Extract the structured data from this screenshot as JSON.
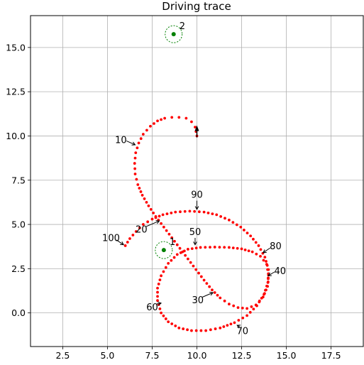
{
  "chart_data": {
    "type": "scatter",
    "title": "Driving trace",
    "xlabel": "",
    "ylabel": "",
    "xlim": [
      0.7,
      19.3
    ],
    "ylim": [
      -1.9,
      16.8
    ],
    "grid": true,
    "x_ticks": [
      2.5,
      5.0,
      7.5,
      10.0,
      12.5,
      15.0,
      17.5
    ],
    "y_ticks": [
      0.0,
      2.5,
      5.0,
      7.5,
      10.0,
      12.5,
      15.0
    ],
    "x_tick_labels": [
      "2.5",
      "5.0",
      "7.5",
      "10.0",
      "12.5",
      "15.0",
      "17.5"
    ],
    "y_tick_labels": [
      "0.0",
      "2.5",
      "5.0",
      "7.5",
      "10.0",
      "12.5",
      "15.0"
    ],
    "trace_color": "#ff0000",
    "marker_color": "#008000",
    "trace": {
      "name": "",
      "points": [
        [
          10.0,
          10.0
        ],
        [
          9.9,
          10.5
        ],
        [
          9.7,
          10.8
        ],
        [
          9.4,
          11.0
        ],
        [
          9.0,
          11.05
        ],
        [
          8.6,
          11.05
        ],
        [
          8.2,
          11.0
        ],
        [
          7.8,
          10.85
        ],
        [
          7.4,
          10.55
        ],
        [
          7.0,
          10.1
        ],
        [
          6.75,
          9.6
        ],
        [
          6.58,
          9.05
        ],
        [
          6.52,
          8.45
        ],
        [
          6.55,
          7.85
        ],
        [
          6.7,
          7.25
        ],
        [
          6.95,
          6.65
        ],
        [
          7.3,
          6.05
        ],
        [
          7.7,
          5.45
        ],
        [
          8.15,
          4.85
        ],
        [
          8.6,
          4.25
        ],
        [
          9.05,
          3.65
        ],
        [
          9.5,
          3.05
        ],
        [
          9.95,
          2.45
        ],
        [
          10.4,
          1.85
        ],
        [
          10.85,
          1.3
        ],
        [
          11.3,
          0.85
        ],
        [
          11.8,
          0.5
        ],
        [
          12.3,
          0.3
        ],
        [
          12.8,
          0.25
        ],
        [
          13.3,
          0.45
        ],
        [
          13.7,
          0.9
        ],
        [
          13.95,
          1.5
        ],
        [
          14.0,
          2.15
        ],
        [
          13.9,
          2.75
        ],
        [
          13.55,
          3.2
        ],
        [
          13.1,
          3.45
        ],
        [
          12.5,
          3.62
        ],
        [
          11.8,
          3.7
        ],
        [
          11.0,
          3.72
        ],
        [
          10.2,
          3.7
        ],
        [
          9.5,
          3.6
        ],
        [
          8.9,
          3.3
        ],
        [
          8.4,
          2.8
        ],
        [
          8.0,
          2.1
        ],
        [
          7.8,
          1.4
        ],
        [
          7.8,
          0.7
        ],
        [
          8.0,
          0.0
        ],
        [
          8.4,
          -0.5
        ],
        [
          9.0,
          -0.85
        ],
        [
          9.7,
          -1.0
        ],
        [
          10.5,
          -1.0
        ],
        [
          11.3,
          -0.85
        ],
        [
          12.1,
          -0.55
        ],
        [
          12.8,
          -0.15
        ],
        [
          13.35,
          0.4
        ],
        [
          13.75,
          1.05
        ],
        [
          13.98,
          1.75
        ],
        [
          14.0,
          2.45
        ],
        [
          13.8,
          3.15
        ],
        [
          13.45,
          3.8
        ],
        [
          13.0,
          4.35
        ],
        [
          12.45,
          4.85
        ],
        [
          11.8,
          5.25
        ],
        [
          11.1,
          5.55
        ],
        [
          10.4,
          5.7
        ],
        [
          9.6,
          5.75
        ],
        [
          8.8,
          5.7
        ],
        [
          8.1,
          5.55
        ],
        [
          7.5,
          5.3
        ],
        [
          7.0,
          5.0
        ],
        [
          6.6,
          4.6
        ],
        [
          6.25,
          4.2
        ],
        [
          6.0,
          3.8
        ]
      ]
    },
    "markers": [
      {
        "label": "1",
        "x": 8.15,
        "y": 3.55
      },
      {
        "label": "2",
        "x": 8.7,
        "y": 15.75
      }
    ],
    "start_point": {
      "x": 10.0,
      "y": 10.4
    },
    "annotations": [
      {
        "text": "10",
        "tx": 5.75,
        "ty": 9.6,
        "px": 6.55,
        "py": 9.5
      },
      {
        "text": "20",
        "tx": 6.9,
        "ty": 4.55,
        "px": 7.9,
        "py": 5.2
      },
      {
        "text": "30",
        "tx": 10.05,
        "ty": 0.55,
        "px": 10.9,
        "py": 1.15
      },
      {
        "text": "40",
        "tx": 14.65,
        "ty": 2.2,
        "px": 13.98,
        "py": 2.1
      },
      {
        "text": "50",
        "tx": 9.9,
        "ty": 4.4,
        "px": 9.9,
        "py": 3.85
      },
      {
        "text": "60",
        "tx": 7.5,
        "ty": 0.15,
        "px": 8.0,
        "py": 0.55
      },
      {
        "text": "70",
        "tx": 12.55,
        "ty": -1.2,
        "px": 12.25,
        "py": -0.7
      },
      {
        "text": "80",
        "tx": 14.4,
        "ty": 3.6,
        "px": 13.7,
        "py": 3.4
      },
      {
        "text": "90",
        "tx": 10.0,
        "ty": 6.5,
        "px": 10.0,
        "py": 5.85
      },
      {
        "text": "100",
        "tx": 5.2,
        "ty": 4.05,
        "px": 5.9,
        "py": 3.85
      }
    ]
  }
}
